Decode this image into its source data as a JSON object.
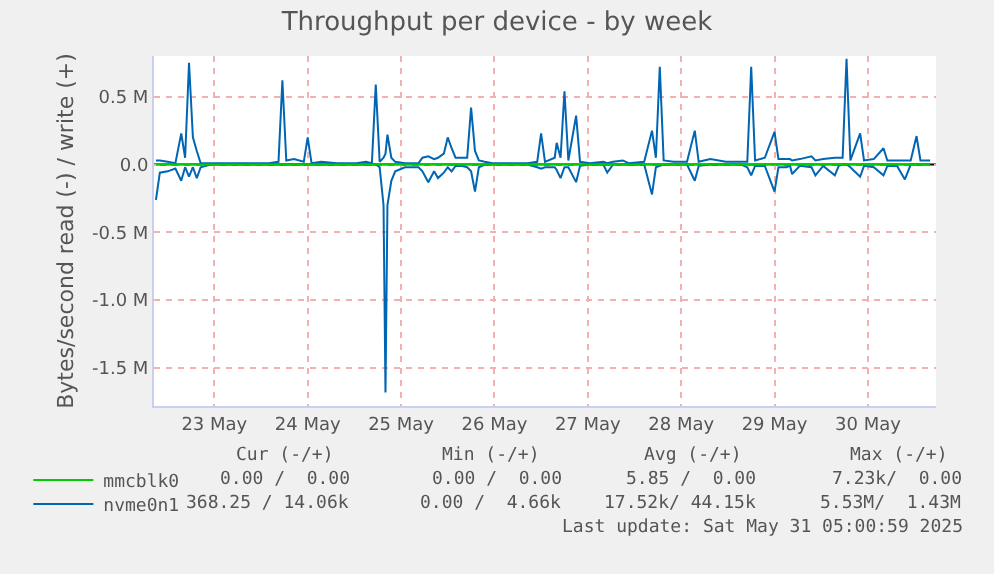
{
  "chart_data": {
    "type": "line",
    "title": "Throughput per device - by week",
    "ylabel": "Bytes/second read (-) / write (+)",
    "x": [
      "2025-05-22T21:00",
      "2025-05-22T22:00",
      "2025-05-23T00:00",
      "2025-05-23T02:00",
      "2025-05-23T03:30",
      "2025-05-23T04:30",
      "2025-05-23T05:30",
      "2025-05-23T06:30",
      "2025-05-23T07:30",
      "2025-05-23T08:30",
      "2025-05-23T11:00",
      "2025-05-23T18:30",
      "2025-05-24T02:00",
      "2025-05-24T04:30",
      "2025-05-24T05:30",
      "2025-05-24T06:30",
      "2025-05-24T08:30",
      "2025-05-24T11:00",
      "2025-05-24T12:00",
      "2025-05-24T13:00",
      "2025-05-24T15:30",
      "2025-05-24T19:30",
      "2025-05-25T00:30",
      "2025-05-25T03:00",
      "2025-05-25T04:30",
      "2025-05-25T05:30",
      "2025-05-25T06:30",
      "2025-05-25T07:30",
      "2025-05-25T08:00",
      "2025-05-25T08:30",
      "2025-05-25T09:30",
      "2025-05-25T10:30",
      "2025-05-25T13:00",
      "2025-05-25T16:30",
      "2025-05-25T17:30",
      "2025-05-25T19:00",
      "2025-05-25T20:30",
      "2025-05-25T21:30",
      "2025-05-25T23:00",
      "2025-05-26T00:00",
      "2025-05-26T01:00",
      "2025-05-26T02:00",
      "2025-05-26T03:30",
      "2025-05-26T05:00",
      "2025-05-26T06:00",
      "2025-05-26T07:00",
      "2025-05-26T08:00",
      "2025-05-26T09:30",
      "2025-05-26T11:30",
      "2025-05-26T16:30",
      "2025-05-26T20:30",
      "2025-05-26T23:00",
      "2025-05-27T00:00",
      "2025-05-27T01:00",
      "2025-05-27T03:30",
      "2025-05-27T04:00",
      "2025-05-27T05:00",
      "2025-05-27T06:00",
      "2025-05-27T07:00",
      "2025-05-27T09:00",
      "2025-05-27T10:00",
      "2025-05-27T12:30",
      "2025-05-27T16:00",
      "2025-05-27T17:00",
      "2025-05-27T18:30",
      "2025-05-27T21:00",
      "2025-05-27T22:30",
      "2025-05-28T02:30",
      "2025-05-28T04:30",
      "2025-05-28T05:30",
      "2025-05-28T06:30",
      "2025-05-28T07:30",
      "2025-05-28T10:00",
      "2025-05-28T13:30",
      "2025-05-28T15:30",
      "2025-05-28T16:30",
      "2025-05-28T19:30",
      "2025-05-28T23:30",
      "2025-05-29T03:30",
      "2025-05-29T05:00",
      "2025-05-29T06:00",
      "2025-05-29T07:00",
      "2025-05-29T09:30",
      "2025-05-29T12:00",
      "2025-05-29T13:00",
      "2025-05-29T15:00",
      "2025-05-29T16:00",
      "2025-05-29T16:30",
      "2025-05-29T18:30",
      "2025-05-29T21:30",
      "2025-05-29T22:30",
      "2025-05-30T00:30",
      "2025-05-30T03:30",
      "2025-05-30T04:30",
      "2025-05-30T05:30",
      "2025-05-30T06:30",
      "2025-05-30T07:30",
      "2025-05-30T10:00",
      "2025-05-30T11:00",
      "2025-05-30T13:30",
      "2025-05-30T16:00",
      "2025-05-30T17:00",
      "2025-05-30T19:30",
      "2025-05-30T21:30",
      "2025-05-30T23:00",
      "2025-05-31T00:30",
      "2025-05-31T01:30",
      "2025-05-31T04:00"
    ],
    "series": [
      {
        "name": "mmcblk0",
        "color": "#00cc00",
        "x": [
          "2025-05-22T21:00",
          "2025-05-31T04:00"
        ],
        "values": [
          0,
          0
        ]
      },
      {
        "name": "nvme0n1",
        "color": "#0066b3",
        "values": [
          0.03,
          0.03,
          0.02,
          0.01,
          0.23,
          0.05,
          0.75,
          0.2,
          0.1,
          0.01,
          0.01,
          0.01,
          0.01,
          0.02,
          0.62,
          0.03,
          0.04,
          0.02,
          0.2,
          0.01,
          0.02,
          0.01,
          0.01,
          0.02,
          0.01,
          0.59,
          0.02,
          0.05,
          0.08,
          0.22,
          0.05,
          0.02,
          0.01,
          0.01,
          0.05,
          0.06,
          0.04,
          0.05,
          0.08,
          0.2,
          0.12,
          0.05,
          0.05,
          0.05,
          0.42,
          0.1,
          0.03,
          0.02,
          0.01,
          0.01,
          0.01,
          0.02,
          0.23,
          0.02,
          0.05,
          0.16,
          0.05,
          0.54,
          0.03,
          0.36,
          0.02,
          0.01,
          0.02,
          0.01,
          0.02,
          0.03,
          0.01,
          0.02,
          0.25,
          0.05,
          0.72,
          0.03,
          0.02,
          0.02,
          0.25,
          0.02,
          0.04,
          0.02,
          0.02,
          0.02,
          0.72,
          0.03,
          0.05,
          0.24,
          0.04,
          0.04,
          0.04,
          0.03,
          0.04,
          0.06,
          0.03,
          0.04,
          0.05,
          0.05,
          0.05,
          0.78,
          0.03,
          0.23,
          0.03,
          0.04,
          0.12,
          0.03,
          0.03,
          0.03,
          0.03,
          0.21,
          0.03,
          0.03
        ]
      },
      {
        "color": "#0066b3",
        "values": [
          -0.26,
          -0.06,
          -0.05,
          -0.03,
          -0.12,
          -0.02,
          -0.09,
          -0.02,
          -0.1,
          -0.02,
          0,
          0,
          0,
          0,
          0,
          0,
          0,
          0,
          0,
          0,
          0,
          0,
          0,
          0,
          0,
          0,
          -0.02,
          -0.3,
          -1.68,
          -0.3,
          -0.12,
          -0.05,
          -0.02,
          -0.02,
          -0.05,
          -0.13,
          -0.05,
          -0.1,
          -0.06,
          -0.02,
          -0.05,
          -0.01,
          -0.01,
          -0.02,
          -0.05,
          -0.2,
          -0.02,
          0,
          0,
          0,
          0,
          -0.02,
          -0.03,
          -0.02,
          -0.02,
          -0.04,
          -0.1,
          -0.02,
          -0.02,
          -0.13,
          -0.01,
          0,
          0,
          -0.06,
          0,
          0,
          0,
          0,
          -0.22,
          -0.02,
          -0.01,
          0,
          0,
          0,
          -0.12,
          -0.01,
          0,
          0,
          0,
          -0.02,
          -0.08,
          -0.01,
          -0.01,
          -0.2,
          -0.02,
          -0.02,
          -0.01,
          -0.07,
          -0.01,
          -0.02,
          -0.08,
          -0.01,
          -0.08,
          -0.01,
          0,
          0,
          -0.02,
          -0.09,
          -0.01,
          -0.02,
          -0.08,
          -0.01,
          -0.01,
          -0.11,
          0,
          0,
          0,
          0
        ]
      }
    ],
    "xlim": [
      "2025-05-22T20:30",
      "2025-05-31T05:30"
    ],
    "xticks": [
      {
        "value": "2025-05-23T12:00",
        "label": "23 May"
      },
      {
        "value": "2025-05-24T12:00",
        "label": "24 May"
      },
      {
        "value": "2025-05-25T12:00",
        "label": "25 May"
      },
      {
        "value": "2025-05-26T12:00",
        "label": "26 May"
      },
      {
        "value": "2025-05-27T12:00",
        "label": "27 May"
      },
      {
        "value": "2025-05-28T12:00",
        "label": "28 May"
      },
      {
        "value": "2025-05-29T12:00",
        "label": "29 May"
      },
      {
        "value": "2025-05-30T12:00",
        "label": "30 May"
      }
    ],
    "ylim": [
      -1.78,
      0.8
    ],
    "yticks": [
      {
        "value": -1.5,
        "label": "-1.5 M"
      },
      {
        "value": -1.0,
        "label": "-1.0 M"
      },
      {
        "value": -0.5,
        "label": "-0.5 M"
      },
      {
        "value": 0,
        "label": "0.0"
      },
      {
        "value": 0.5,
        "label": "0.5 M"
      }
    ],
    "ref_lines": [
      {
        "axis": "y",
        "value": 0,
        "color": "#000000"
      }
    ],
    "grid": true,
    "legend": "bottom",
    "marker": "none",
    "line_style": "solid",
    "annotations": [
      "Cur (-/+)",
      "Min (-/+)",
      "Avg (-/+)",
      "Max (-/+)",
      "0.00 /  0.00",
      "0.00 /  0.00",
      "5.85 /  0.00",
      "7.23k/  0.00",
      "368.25 / 14.06k",
      "0.00 /  4.66k",
      "17.52k/ 44.15k",
      "5.53M/  1.43M",
      "Last update: Sat May 31 05:00:59 2025"
    ]
  }
}
